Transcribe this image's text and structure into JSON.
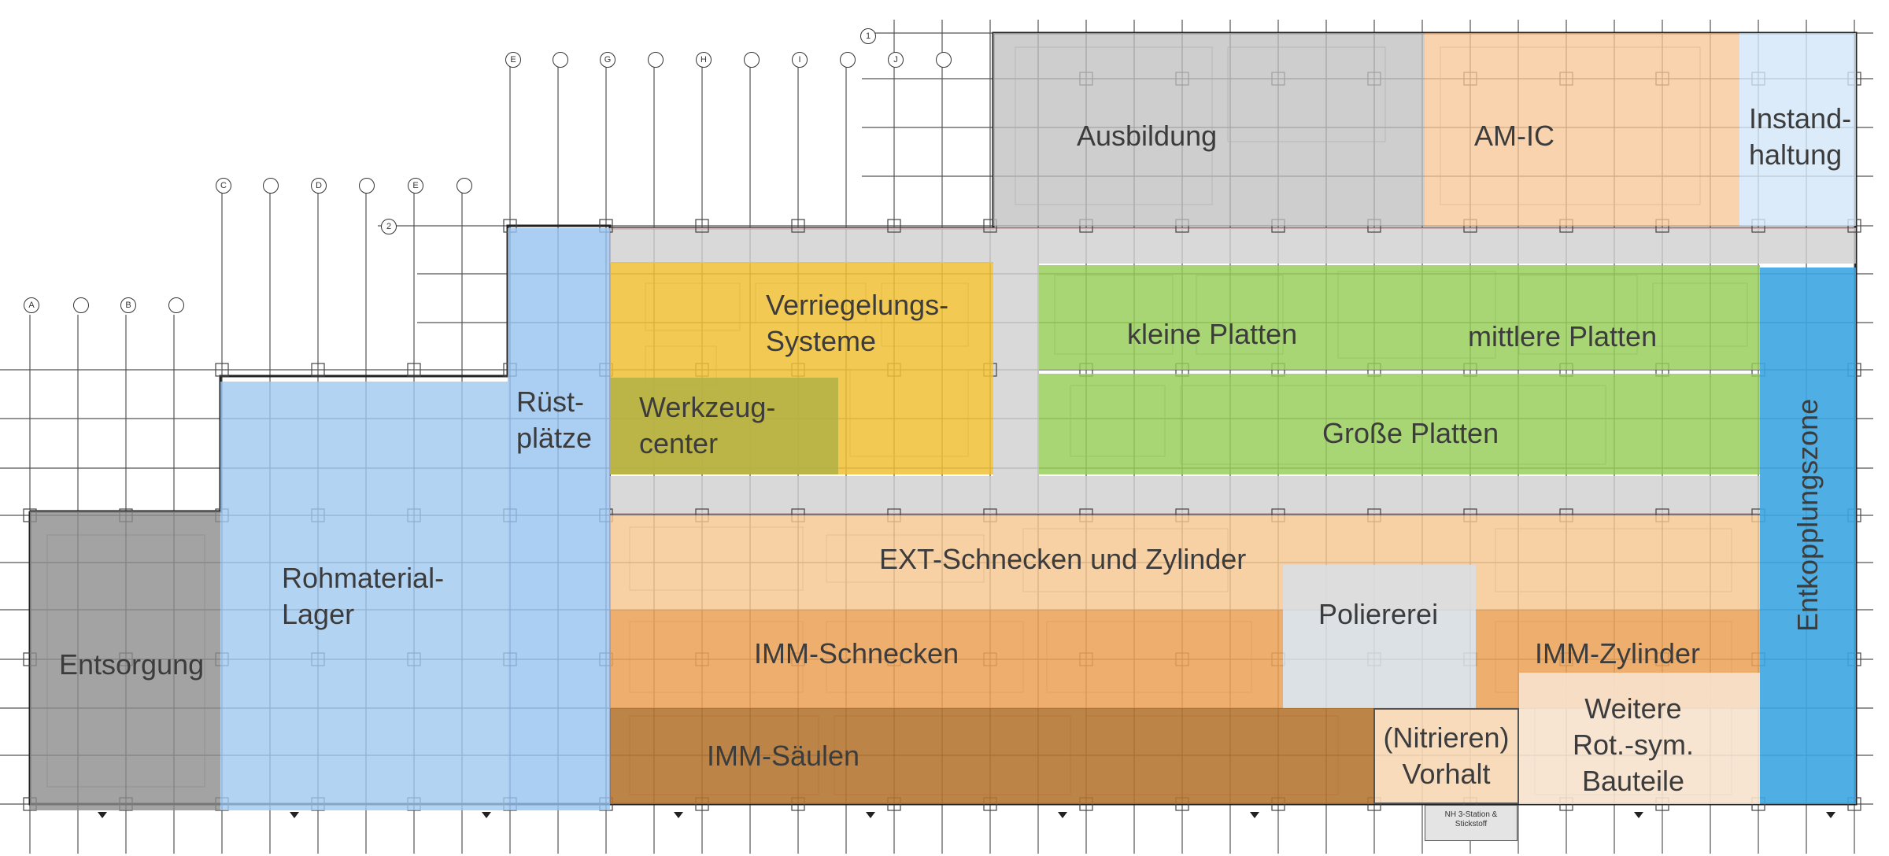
{
  "zones": {
    "ausbildung": "Ausbildung",
    "am_ic": "AM-IC",
    "instandhaltung": "Instand-\nhaltung",
    "verriegelungs": "Verriegelungs-\nSysteme",
    "werkzeugcenter": "Werkzeug-\ncenter",
    "kleine_platten": "kleine Platten",
    "mittlere_platten": "mittlere Platten",
    "grosse_platten": "Große Platten",
    "ruestplaetze": "Rüst-\nplätze",
    "rohmaterial": "Rohmaterial-\nLager",
    "entsorgung": "Entsorgung",
    "ext_schnecken": "EXT-Schnecken und Zylinder",
    "poliererei": "Poliererei",
    "imm_schnecken": "IMM-Schnecken",
    "imm_zylinder": "IMM-Zylinder",
    "imm_saeulen": "IMM-Säulen",
    "nitrieren": "(Nitrieren)\nVorhalt",
    "weitere": "Weitere\nRot.-sym.\nBauteile",
    "entkopplung": "Entkopplungszone"
  },
  "annotations": {
    "nh3_station": "NH 3-Station &\nStickstoff"
  },
  "grid_bubbles": {
    "top_row": [
      "E",
      "",
      "G",
      "",
      "H",
      "",
      "I",
      "",
      "J",
      ""
    ],
    "mid_row": [
      "C",
      "",
      "D",
      "",
      "E",
      ""
    ],
    "left_row": [
      "A",
      "",
      "B",
      ""
    ],
    "side_numbers": [
      "1",
      "2"
    ]
  },
  "colors": {
    "gray_zone": "#c8c8c8",
    "orange_light": "#f6c99a",
    "blue_light": "#d6e8f8",
    "yellow": "#f0c23c",
    "olive": "#b7b24a",
    "green": "#9ccf5a",
    "blue_mid": "#9ec7ee",
    "dark_gray": "#8a8a8a",
    "orange_mid": "#f1b16d",
    "orange_dark": "#e49a4a",
    "brown": "#b97a33",
    "blue_strong": "#4aaae0",
    "poliererei": "#d8dde0",
    "weitere": "#f6e2cd"
  }
}
